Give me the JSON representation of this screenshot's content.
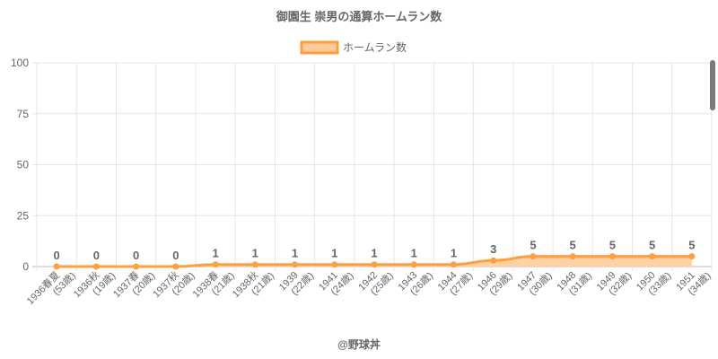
{
  "chart_data": {
    "type": "area",
    "title": "御園生 崇男の通算ホームラン数",
    "legend": {
      "label": "ホームラン数",
      "placement": "top-center"
    },
    "categories": [
      [
        "1936春夏",
        "(53歳)"
      ],
      [
        "1936秋",
        "(19歳)"
      ],
      [
        "1937春",
        "(20歳)"
      ],
      [
        "1937秋",
        "(20歳)"
      ],
      [
        "1938春",
        "(21歳)"
      ],
      [
        "1938秋",
        "(21歳)"
      ],
      [
        "1939",
        "(22歳)"
      ],
      [
        "1941",
        "(24歳)"
      ],
      [
        "1942",
        "(25歳)"
      ],
      [
        "1943",
        "(26歳)"
      ],
      [
        "1944",
        "(27歳)"
      ],
      [
        "1946",
        "(29歳)"
      ],
      [
        "1947",
        "(30歳)"
      ],
      [
        "1948",
        "(31歳)"
      ],
      [
        "1949",
        "(32歳)"
      ],
      [
        "1950",
        "(33歳)"
      ],
      [
        "1951",
        "(34歳)"
      ]
    ],
    "values": [
      0,
      0,
      0,
      0,
      1,
      1,
      1,
      1,
      1,
      1,
      1,
      3,
      5,
      5,
      5,
      5,
      5
    ],
    "ylim": [
      0,
      100
    ],
    "yticks": [
      "0",
      "25",
      "50",
      "75",
      "100"
    ],
    "grid": true,
    "colors": {
      "line": "#ff9f40",
      "fill": "#ffcc99"
    },
    "credit": "@野球丼"
  }
}
